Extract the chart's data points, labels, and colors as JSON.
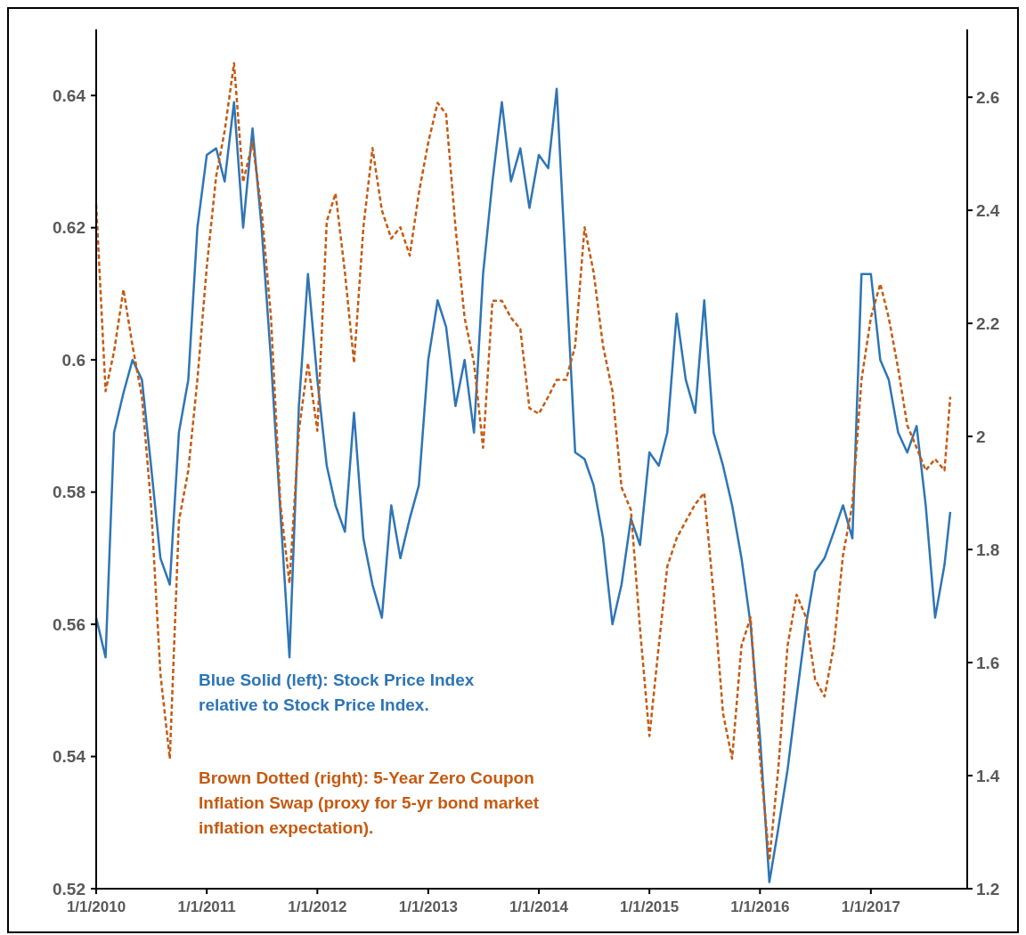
{
  "chart_data": {
    "type": "line",
    "xlim": [
      "2010-01-01",
      "2017-11-15"
    ],
    "xticks": [
      {
        "value": "2010-01-01",
        "label": "1/1/2010"
      },
      {
        "value": "2011-01-01",
        "label": "1/1/2011"
      },
      {
        "value": "2012-01-01",
        "label": "1/1/2012"
      },
      {
        "value": "2013-01-01",
        "label": "1/1/2013"
      },
      {
        "value": "2014-01-01",
        "label": "1/1/2014"
      },
      {
        "value": "2015-01-01",
        "label": "1/1/2015"
      },
      {
        "value": "2016-01-01",
        "label": "1/1/2016"
      },
      {
        "value": "2017-01-01",
        "label": "1/1/2017"
      }
    ],
    "ylim": [
      0.52,
      0.65
    ],
    "yticks": [
      0.52,
      0.54,
      0.56,
      0.58,
      0.6,
      0.62,
      0.64
    ],
    "y2lim": [
      1.2,
      2.72
    ],
    "y2ticks": [
      1.2,
      1.4,
      1.6,
      1.8,
      2,
      2.2,
      2.4,
      2.6
    ],
    "x": [
      "2010-01",
      "2010-02",
      "2010-03",
      "2010-04",
      "2010-05",
      "2010-06",
      "2010-07",
      "2010-08",
      "2010-09",
      "2010-10",
      "2010-11",
      "2010-12",
      "2011-01",
      "2011-02",
      "2011-03",
      "2011-04",
      "2011-05",
      "2011-06",
      "2011-07",
      "2011-08",
      "2011-09",
      "2011-10",
      "2011-11",
      "2011-12",
      "2012-01",
      "2012-02",
      "2012-03",
      "2012-04",
      "2012-05",
      "2012-06",
      "2012-07",
      "2012-08",
      "2012-09",
      "2012-10",
      "2012-11",
      "2012-12",
      "2013-01",
      "2013-02",
      "2013-03",
      "2013-04",
      "2013-05",
      "2013-06",
      "2013-07",
      "2013-08",
      "2013-09",
      "2013-10",
      "2013-11",
      "2013-12",
      "2014-01",
      "2014-02",
      "2014-03",
      "2014-04",
      "2014-05",
      "2014-06",
      "2014-07",
      "2014-08",
      "2014-09",
      "2014-10",
      "2014-11",
      "2014-12",
      "2015-01",
      "2015-02",
      "2015-03",
      "2015-04",
      "2015-05",
      "2015-06",
      "2015-07",
      "2015-08",
      "2015-09",
      "2015-10",
      "2015-11",
      "2015-12",
      "2016-01",
      "2016-02",
      "2016-03",
      "2016-04",
      "2016-05",
      "2016-06",
      "2016-07",
      "2016-08",
      "2016-09",
      "2016-10",
      "2016-11",
      "2016-12",
      "2017-01",
      "2017-02",
      "2017-03",
      "2017-04",
      "2017-05",
      "2017-06",
      "2017-07",
      "2017-08",
      "2017-09",
      "2017-09-20"
    ],
    "series": [
      {
        "color": "#2e75b6",
        "line_style": "solid",
        "values": [
          0.561,
          0.555,
          0.589,
          0.595,
          0.6,
          0.597,
          0.584,
          0.57,
          0.566,
          0.589,
          0.597,
          0.62,
          0.631,
          0.632,
          0.627,
          0.639,
          0.62,
          0.635,
          0.62,
          0.6,
          0.577,
          0.555,
          0.593,
          0.613,
          0.597,
          0.584,
          0.578,
          0.574,
          0.592,
          0.573,
          0.566,
          0.561,
          0.578,
          0.57,
          0.576,
          0.581,
          0.6,
          0.609,
          0.605,
          0.593,
          0.6,
          0.589,
          0.613,
          0.627,
          0.639,
          0.627,
          0.632,
          0.623,
          0.631,
          0.629,
          0.641,
          0.613,
          0.586,
          0.585,
          0.581,
          0.573,
          0.56,
          0.566,
          0.576,
          0.572,
          0.586,
          0.584,
          0.589,
          0.607,
          0.597,
          0.592,
          0.609,
          0.589,
          0.584,
          0.578,
          0.57,
          0.56,
          0.543,
          0.521,
          0.529,
          0.538,
          0.549,
          0.56,
          0.568,
          0.57,
          0.574,
          0.578,
          0.573,
          0.613,
          0.613,
          0.6,
          0.597,
          0.589,
          0.586,
          0.59,
          0.578,
          0.561,
          0.569,
          0.577
        ]
      },
      {
        "color": "#c55a11",
        "line_style": "dashed",
        "axis": "y2",
        "values": [
          2.41,
          2.08,
          2.15,
          2.26,
          2.16,
          2.07,
          1.88,
          1.58,
          1.43,
          1.85,
          1.94,
          2.1,
          2.3,
          2.46,
          2.54,
          2.66,
          2.45,
          2.52,
          2.4,
          2.21,
          1.88,
          1.74,
          2.01,
          2.13,
          2.01,
          2.38,
          2.43,
          2.29,
          2.13,
          2.37,
          2.51,
          2.4,
          2.35,
          2.37,
          2.32,
          2.43,
          2.52,
          2.59,
          2.57,
          2.37,
          2.21,
          2.13,
          1.98,
          2.24,
          2.24,
          2.21,
          2.19,
          2.05,
          2.04,
          2.07,
          2.1,
          2.1,
          2.16,
          2.37,
          2.29,
          2.16,
          2.08,
          1.91,
          1.87,
          1.66,
          1.47,
          1.63,
          1.77,
          1.82,
          1.85,
          1.88,
          1.9,
          1.72,
          1.51,
          1.43,
          1.63,
          1.68,
          1.43,
          1.25,
          1.41,
          1.63,
          1.72,
          1.68,
          1.57,
          1.54,
          1.63,
          1.79,
          1.88,
          2.1,
          2.21,
          2.27,
          2.21,
          2.12,
          2.02,
          1.98,
          1.94,
          1.96,
          1.94,
          2.07
        ]
      }
    ],
    "annotations": [
      "Blue Solid (left): Stock Price Index relative to Stock Price Index.",
      "Brown Dotted (right): 5-Year Zero Coupon Inflation Swap (proxy for 5-yr bond market inflation expectation)."
    ],
    "grid": false
  }
}
